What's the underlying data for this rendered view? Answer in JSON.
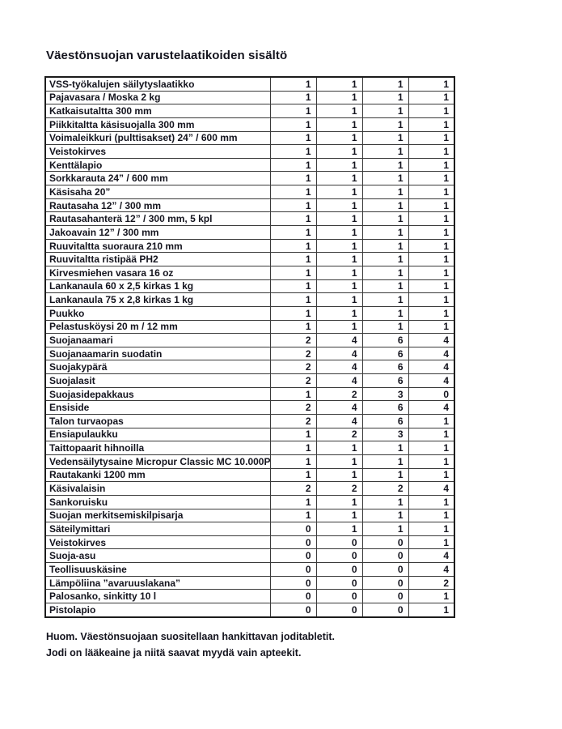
{
  "title": "Väestönsuojan varustelaatikoiden sisältö",
  "table": {
    "rows": [
      {
        "name": "VSS-työkalujen säilytyslaatikko",
        "values": [
          1,
          1,
          1,
          1
        ]
      },
      {
        "name": "Pajavasara / Moska 2 kg",
        "values": [
          1,
          1,
          1,
          1
        ]
      },
      {
        "name": "Katkaisutaltta 300 mm",
        "values": [
          1,
          1,
          1,
          1
        ]
      },
      {
        "name": "Piikkitaltta käsisuojalla 300 mm",
        "values": [
          1,
          1,
          1,
          1
        ]
      },
      {
        "name": "Voimaleikkuri (pulttisakset) 24” / 600 mm",
        "values": [
          1,
          1,
          1,
          1
        ]
      },
      {
        "name": "Veistokirves",
        "values": [
          1,
          1,
          1,
          1
        ]
      },
      {
        "name": "Kenttälapio",
        "values": [
          1,
          1,
          1,
          1
        ]
      },
      {
        "name": "Sorkkarauta 24” / 600 mm",
        "values": [
          1,
          1,
          1,
          1
        ]
      },
      {
        "name": "Käsisaha 20”",
        "values": [
          1,
          1,
          1,
          1
        ]
      },
      {
        "name": "Rautasaha 12” / 300 mm",
        "values": [
          1,
          1,
          1,
          1
        ]
      },
      {
        "name": "Rautasahanterä 12” / 300 mm, 5 kpl",
        "values": [
          1,
          1,
          1,
          1
        ]
      },
      {
        "name": "Jakoavain 12” / 300 mm",
        "values": [
          1,
          1,
          1,
          1
        ]
      },
      {
        "name": "Ruuvitaltta suoraura 210 mm",
        "values": [
          1,
          1,
          1,
          1
        ]
      },
      {
        "name": "Ruuvitaltta ristipää PH2",
        "values": [
          1,
          1,
          1,
          1
        ]
      },
      {
        "name": "Kirvesmiehen vasara 16 oz",
        "values": [
          1,
          1,
          1,
          1
        ]
      },
      {
        "name": "Lankanaula 60 x 2,5 kirkas 1 kg",
        "values": [
          1,
          1,
          1,
          1
        ]
      },
      {
        "name": "Lankanaula 75 x 2,8 kirkas 1 kg",
        "values": [
          1,
          1,
          1,
          1
        ]
      },
      {
        "name": "Puukko",
        "values": [
          1,
          1,
          1,
          1
        ]
      },
      {
        "name": "Pelastusköysi 20 m / 12 mm",
        "values": [
          1,
          1,
          1,
          1
        ]
      },
      {
        "name": "Suojanaamari",
        "values": [
          2,
          4,
          6,
          4
        ]
      },
      {
        "name": "Suojanaamarin suodatin",
        "values": [
          2,
          4,
          6,
          4
        ]
      },
      {
        "name": "Suojakypärä",
        "values": [
          2,
          4,
          6,
          4
        ]
      },
      {
        "name": "Suojalasit",
        "values": [
          2,
          4,
          6,
          4
        ]
      },
      {
        "name": "Suojasidepakkaus",
        "values": [
          1,
          2,
          3,
          0
        ]
      },
      {
        "name": "Ensiside",
        "values": [
          2,
          4,
          6,
          4
        ]
      },
      {
        "name": "Talon turvaopas",
        "values": [
          2,
          4,
          6,
          1
        ]
      },
      {
        "name": "Ensiapulaukku",
        "values": [
          1,
          2,
          3,
          1
        ]
      },
      {
        "name": "Taittopaarit hihnoilla",
        "values": [
          1,
          1,
          1,
          1
        ]
      },
      {
        "name": "Vedensäilytysaine Micropur Classic MC 10.000P",
        "values": [
          1,
          1,
          1,
          1
        ]
      },
      {
        "name": "Rautakanki 1200 mm",
        "values": [
          1,
          1,
          1,
          1
        ]
      },
      {
        "name": "Käsivalaisin",
        "values": [
          2,
          2,
          2,
          4
        ]
      },
      {
        "name": "Sankoruisku",
        "values": [
          1,
          1,
          1,
          1
        ]
      },
      {
        "name": "Suojan merkitsemiskilpisarja",
        "values": [
          1,
          1,
          1,
          1
        ]
      },
      {
        "name": "Säteilymittari",
        "values": [
          0,
          1,
          1,
          1
        ]
      },
      {
        "name": "Veistokirves",
        "values": [
          0,
          0,
          0,
          1
        ]
      },
      {
        "name": "Suoja-asu",
        "values": [
          0,
          0,
          0,
          4
        ]
      },
      {
        "name": "Teollisuuskäsine",
        "values": [
          0,
          0,
          0,
          4
        ]
      },
      {
        "name": "Lämpöliina ”avaruuslakana”",
        "values": [
          0,
          0,
          0,
          2
        ]
      },
      {
        "name": "Palosanko, sinkitty 10 l",
        "values": [
          0,
          0,
          0,
          1
        ]
      },
      {
        "name": "Pistolapio",
        "values": [
          0,
          0,
          0,
          1
        ]
      }
    ]
  },
  "footer": {
    "line1": "Huom. Väestönsuojaan suositellaan hankittavan joditabletit.",
    "line2": "Jodi on lääkeaine ja niitä saavat myydä vain apteekit."
  }
}
